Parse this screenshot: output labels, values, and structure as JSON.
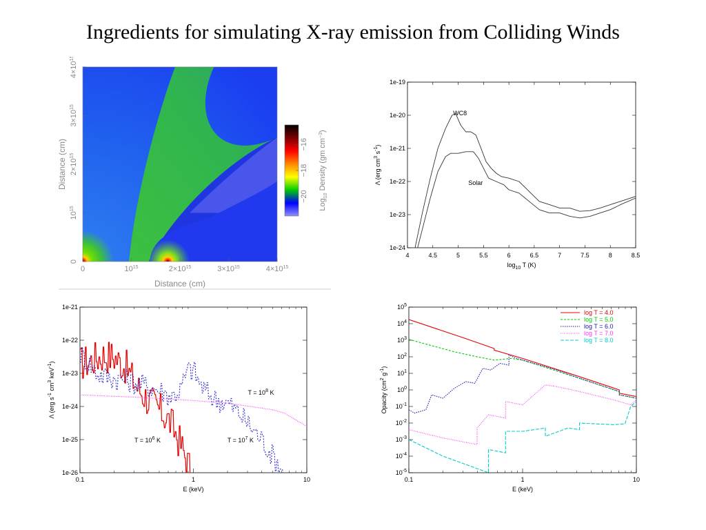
{
  "slide": {
    "title": "Ingredients for simulating X-ray emission from Colliding Winds"
  },
  "chart_data": [
    {
      "type": "heatmap",
      "xlabel": "Distance (cm)",
      "ylabel": "Distance (cm)",
      "xlim": [
        0,
        4000000000000000.0
      ],
      "ylim": [
        0,
        4000000000000000.0
      ],
      "x_ticks": [
        {
          "value": 0,
          "label": "0"
        },
        {
          "value": 1000000000000000.0,
          "label": "10",
          "exp": "15"
        },
        {
          "value": 2000000000000000.0,
          "label": "2×10",
          "exp": "15"
        },
        {
          "value": 3000000000000000.0,
          "label": "3×10",
          "exp": "15"
        },
        {
          "value": 4000000000000000.0,
          "label": "4×10",
          "exp": "15"
        }
      ],
      "y_ticks": [
        {
          "value": 0,
          "label": "0"
        },
        {
          "value": 1000000000000000.0,
          "label": "10",
          "exp": "15"
        },
        {
          "value": 2000000000000000.0,
          "label": "2×10",
          "exp": "15"
        },
        {
          "value": 3000000000000000.0,
          "label": "3×10",
          "exp": "15"
        },
        {
          "value": 4000000000000000.0,
          "label": "4×10",
          "exp": "15"
        }
      ],
      "colorbar": {
        "label_parts": [
          "Log",
          "10",
          " Density (gm cm",
          "−3",
          ")"
        ],
        "range": [
          -21.5,
          -14.5
        ],
        "ticks": [
          {
            "value": -16,
            "label": "−16"
          },
          {
            "value": -18,
            "label": "−18"
          },
          {
            "value": -20,
            "label": "−20"
          }
        ],
        "colors": [
          "#000000",
          "#7a0000",
          "#ff0000",
          "#ff8800",
          "#ffff00",
          "#00cc00",
          "#0000ff",
          "#9090ff"
        ]
      },
      "stars": [
        {
          "x": 0,
          "y": 0
        },
        {
          "x": 1750000000000000.0,
          "y": 0
        }
      ]
    },
    {
      "type": "line",
      "xlabel": "log",
      "xlabel_sub": "10",
      "xlabel_rest": " T (K)",
      "ylabel": "Λ (erg cm",
      "ylabel_sup": "3",
      "ylabel_rest": " s",
      "ylabel_sup2": "-1",
      "ylabel_end": ")",
      "xlim": [
        4,
        8.5
      ],
      "ylim_log10": [
        -24,
        -19
      ],
      "x_ticks": [
        "4",
        "4.5",
        "5",
        "5.5",
        "6",
        "6.5",
        "7",
        "7.5",
        "8",
        "8.5"
      ],
      "y_ticks": [
        {
          "log": -19,
          "label": "1e-19"
        },
        {
          "log": -20,
          "label": "1e-20"
        },
        {
          "log": -21,
          "label": "1e-21"
        },
        {
          "log": -22,
          "label": "1e-22"
        },
        {
          "log": -23,
          "label": "1e-23"
        },
        {
          "log": -24,
          "label": "1e-24"
        }
      ],
      "annotations": [
        {
          "text": "WC8",
          "x": 4.9,
          "log_y": -20.0
        },
        {
          "text": "Solar",
          "x": 5.2,
          "log_y": -22.1
        }
      ],
      "series": [
        {
          "x": [
            4.15,
            4.3,
            4.45,
            4.6,
            4.75,
            4.88,
            4.95,
            5.05,
            5.15,
            5.25,
            5.35,
            5.45,
            5.55,
            5.65,
            5.75,
            5.85,
            6.0,
            6.2,
            6.4,
            6.6,
            6.8,
            7.0,
            7.2,
            7.4,
            7.6,
            7.8,
            8.0,
            8.2,
            8.5
          ],
          "log_y": [
            -24.0,
            -22.9,
            -21.9,
            -21.0,
            -20.4,
            -20.0,
            -19.95,
            -20.3,
            -20.5,
            -20.5,
            -20.6,
            -21.0,
            -21.4,
            -21.6,
            -21.75,
            -21.85,
            -21.9,
            -22.0,
            -22.3,
            -22.6,
            -22.7,
            -22.8,
            -22.8,
            -22.9,
            -22.88,
            -22.8,
            -22.7,
            -22.6,
            -22.45
          ]
        },
        {
          "x": [
            4.2,
            4.3,
            4.45,
            4.6,
            4.75,
            4.85,
            5.0,
            5.15,
            5.3,
            5.4,
            5.5,
            5.6,
            5.75,
            5.9,
            6.0,
            6.2,
            6.4,
            6.6,
            6.8,
            7.0,
            7.2,
            7.4,
            7.6,
            7.8,
            8.0,
            8.2,
            8.5
          ],
          "log_y": [
            -24.0,
            -23.4,
            -22.5,
            -21.7,
            -21.25,
            -21.15,
            -21.15,
            -21.1,
            -21.1,
            -21.3,
            -21.6,
            -21.9,
            -22.0,
            -22.1,
            -22.25,
            -22.35,
            -22.6,
            -22.85,
            -22.95,
            -22.95,
            -23.05,
            -23.1,
            -23.05,
            -22.95,
            -22.85,
            -22.7,
            -22.5
          ]
        }
      ]
    },
    {
      "type": "line",
      "xlabel": "E (keV)",
      "ylabel": "Λ (erg s",
      "ylabel_sup": "-1",
      "ylabel_rest": " cm",
      "ylabel_sup2": "3",
      "ylabel_rest2": " keV",
      "ylabel_sup3": "-1",
      "ylabel_end": ")",
      "xlim_log10": [
        -1,
        1
      ],
      "ylim_log10": [
        -26,
        -21
      ],
      "x_ticks": [
        {
          "log": -1,
          "label": "0.1"
        },
        {
          "log": 0,
          "label": "1"
        },
        {
          "log": 1,
          "label": "10"
        }
      ],
      "y_ticks": [
        {
          "log": -21,
          "label": "1e-21"
        },
        {
          "log": -22,
          "label": "1e-22"
        },
        {
          "log": -23,
          "label": "1e-23"
        },
        {
          "log": -24,
          "label": "1e-24"
        },
        {
          "log": -25,
          "label": "1e-25"
        },
        {
          "log": -26,
          "label": "1e-26"
        }
      ],
      "annotations": [
        {
          "text": "T = 10",
          "sup": "6",
          "rest": " K",
          "log_x": -0.52,
          "log_y": -25.08
        },
        {
          "text": "T = 10",
          "sup": "7",
          "rest": " K",
          "log_x": 0.3,
          "log_y": -25.08
        },
        {
          "text": "T = 10",
          "sup": "8",
          "rest": " K",
          "log_x": 0.48,
          "log_y": -23.65
        }
      ],
      "series": [
        {
          "color": "#e60000",
          "dash": "",
          "style": "noisy",
          "x_log": [
            -1.0,
            -0.9,
            -0.8,
            -0.7,
            -0.6,
            -0.5,
            -0.4,
            -0.3,
            -0.2,
            -0.12,
            -0.06,
            -0.02
          ],
          "y_log": [
            -22.7,
            -22.6,
            -22.45,
            -22.5,
            -22.8,
            -23.4,
            -23.8,
            -24.1,
            -24.5,
            -25.1,
            -25.6,
            -26.0
          ]
        },
        {
          "color": "#2a2acc",
          "dash": "2,2",
          "style": "noisy",
          "x_log": [
            -1.0,
            -0.92,
            -0.85,
            -0.78,
            -0.7,
            -0.6,
            -0.5,
            -0.4,
            -0.3,
            -0.2,
            -0.12,
            -0.05,
            0.0,
            0.05,
            0.12,
            0.2,
            0.3,
            0.4,
            0.5,
            0.6,
            0.7,
            0.8
          ],
          "y_log": [
            -22.4,
            -22.7,
            -23.0,
            -23.1,
            -23.15,
            -23.2,
            -23.3,
            -23.4,
            -23.5,
            -23.7,
            -23.5,
            -22.9,
            -22.9,
            -23.3,
            -23.6,
            -23.8,
            -23.9,
            -24.2,
            -24.6,
            -25.0,
            -25.5,
            -26.0
          ]
        },
        {
          "color": "#ff33ff",
          "dash": "1,1.5",
          "style": "smooth",
          "x_log": [
            -1.0,
            -0.5,
            0.0,
            0.3,
            0.5,
            0.7,
            0.8,
            0.9,
            1.0
          ],
          "y_log": [
            -23.65,
            -23.72,
            -23.82,
            -23.9,
            -24.0,
            -24.1,
            -24.2,
            -24.4,
            -24.6
          ]
        }
      ]
    },
    {
      "type": "line",
      "xlabel": "E (keV)",
      "ylabel": "Opacity (cm",
      "ylabel_sup": "2",
      "ylabel_rest": " g",
      "ylabel_sup2": "-1",
      "ylabel_end": ")",
      "xlim_log10": [
        -1,
        1
      ],
      "ylim_log10": [
        -5,
        5
      ],
      "x_ticks": [
        {
          "log": -1,
          "label": "0.1"
        },
        {
          "log": 0,
          "label": "1"
        },
        {
          "log": 1,
          "label": "10"
        }
      ],
      "y_ticks": [
        {
          "log": 5,
          "base": "10",
          "exp": "5"
        },
        {
          "log": 4,
          "base": "10",
          "exp": "4"
        },
        {
          "log": 3,
          "base": "10",
          "exp": "3"
        },
        {
          "log": 2,
          "base": "10",
          "exp": "2"
        },
        {
          "log": 1,
          "base": "10",
          "exp": "1"
        },
        {
          "log": 0,
          "base": "10",
          "exp": "0"
        },
        {
          "log": -1,
          "base": "10",
          "exp": "-1"
        },
        {
          "log": -2,
          "base": "10",
          "exp": "-2"
        },
        {
          "log": -3,
          "base": "10",
          "exp": "-3"
        },
        {
          "log": -4,
          "base": "10",
          "exp": "-4"
        },
        {
          "log": -5,
          "base": "10",
          "exp": "-5"
        }
      ],
      "legend_position": "top-right",
      "series": [
        {
          "name": "log T = 4.0",
          "color": "#e60000",
          "dash": "",
          "x_log": [
            -1.0,
            -0.5,
            -0.25,
            -0.25,
            0.0,
            0.5,
            0.85,
            0.85,
            1.0
          ],
          "y_log": [
            4.25,
            3.1,
            2.5,
            2.4,
            1.9,
            0.8,
            0.0,
            -0.2,
            -0.4
          ]
        },
        {
          "name": "log T = 5.0",
          "color": "#00cc00",
          "dash": "3,2",
          "x_log": [
            -1.0,
            -0.6,
            -0.4,
            -0.25,
            -0.1,
            0.0,
            0.5,
            0.85,
            0.85,
            1.0
          ],
          "y_log": [
            3.05,
            2.3,
            2.0,
            1.8,
            1.9,
            1.8,
            0.7,
            -0.1,
            -0.3,
            -0.5
          ]
        },
        {
          "name": "log T = 6.0",
          "color": "#1a1aaa",
          "dash": "1.5,1.5",
          "x_log": [
            -1.0,
            -0.95,
            -0.85,
            -0.8,
            -0.7,
            -0.6,
            -0.5,
            -0.42,
            -0.35,
            -0.28,
            -0.2,
            -0.12,
            -0.12,
            -0.05,
            0.0,
            0.3,
            0.5,
            0.85,
            0.85,
            1.0
          ],
          "y_log": [
            -1.2,
            -1.4,
            -1.2,
            -0.3,
            -0.5,
            0.1,
            0.5,
            0.4,
            1.3,
            1.2,
            1.6,
            1.5,
            2.1,
            1.9,
            1.8,
            1.2,
            0.7,
            -0.1,
            -0.3,
            -0.5
          ]
        },
        {
          "name": "log T = 7.0",
          "color": "#ff33ff",
          "dash": "1,1.5",
          "x_log": [
            -1.0,
            -0.7,
            -0.4,
            -0.4,
            -0.3,
            -0.15,
            -0.15,
            0.0,
            0.1,
            0.2,
            0.3,
            0.5,
            0.8,
            0.9,
            0.95,
            1.0
          ],
          "y_log": [
            -2.4,
            -2.9,
            -3.3,
            -2.3,
            -1.5,
            -1.7,
            -0.7,
            -0.9,
            -0.3,
            0.3,
            0.2,
            -0.1,
            -0.6,
            -0.8,
            -0.9,
            -0.6
          ]
        },
        {
          "name": "log T = 8.0",
          "color": "#00cccc",
          "dash": "5,2",
          "x_log": [
            -1.0,
            -0.7,
            -0.5,
            -0.3,
            -0.3,
            -0.15,
            -0.15,
            0.0,
            0.2,
            0.2,
            0.4,
            0.5,
            0.5,
            0.8,
            0.9,
            0.95,
            1.0
          ],
          "y_log": [
            -3.0,
            -4.0,
            -4.5,
            -5.0,
            -3.6,
            -3.8,
            -2.5,
            -2.5,
            -2.3,
            -2.8,
            -2.3,
            -2.4,
            -2.0,
            -2.1,
            -2.05,
            -1.0,
            -0.7
          ]
        }
      ]
    }
  ]
}
